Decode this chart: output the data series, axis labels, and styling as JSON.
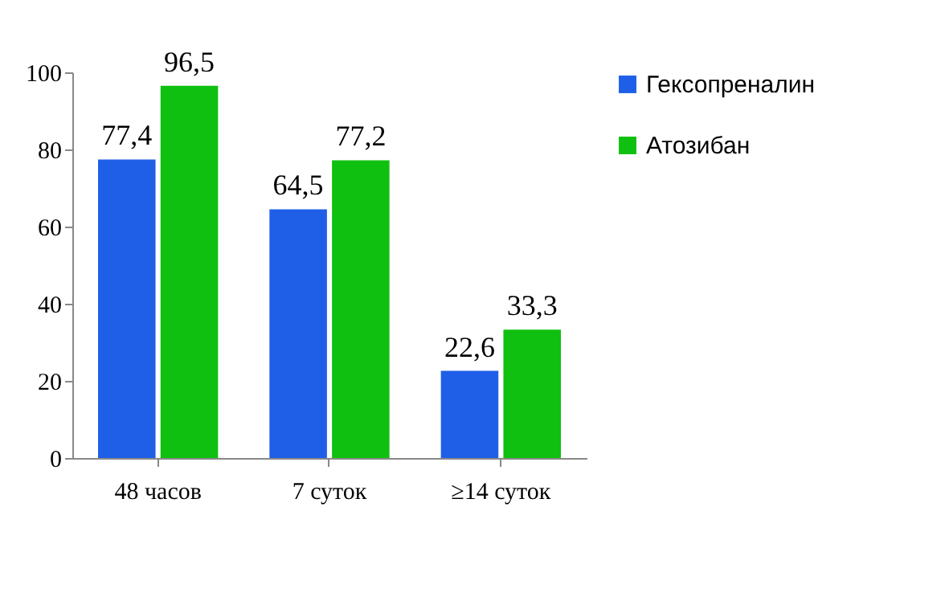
{
  "chart_data": {
    "type": "bar",
    "categories": [
      "48 часов",
      "7 суток",
      "≥14 суток"
    ],
    "series": [
      {
        "name": "Гексопреналин",
        "color": "#1f5fe8",
        "values": [
          77.4,
          64.5,
          22.6
        ],
        "value_labels": [
          "77,4",
          "64,5",
          "22,6"
        ]
      },
      {
        "name": "Атозибан",
        "color": "#10c010",
        "values": [
          96.5,
          77.2,
          33.3
        ],
        "value_labels": [
          "96,5",
          "77,2",
          "33,3"
        ]
      }
    ],
    "ylim": [
      0,
      100
    ],
    "yticks": [
      0,
      20,
      40,
      60,
      80,
      100
    ],
    "legend": "right",
    "grid": false
  }
}
